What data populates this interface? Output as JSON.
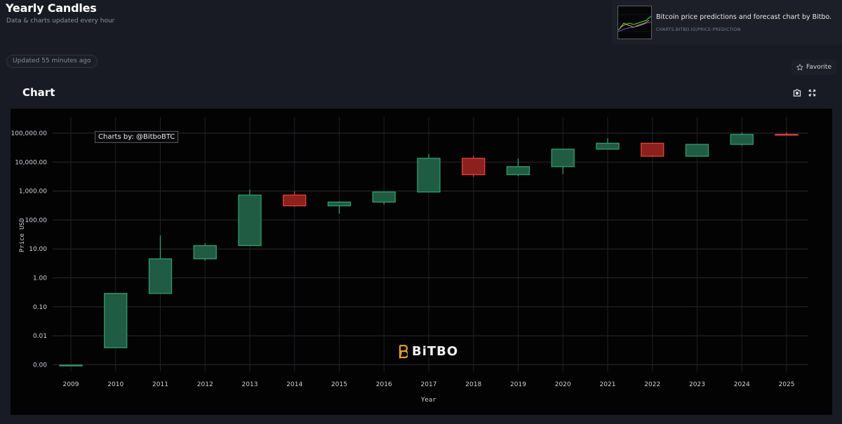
{
  "header": {
    "title": "Yearly Candles",
    "subtitle": "Data & charts updated every hour",
    "updated": "Updated 55 minutes ago"
  },
  "promo": {
    "title": "Bitcoin price predictions and forecast chart by Bitbo.",
    "url": "CHARTS.BITBO.IO/PRICE-PREDICTION"
  },
  "favorite": {
    "label": "Favorite",
    "icon": "star-outline-icon"
  },
  "chart_panel": {
    "heading": "Chart",
    "tools": [
      {
        "name": "camera-icon"
      },
      {
        "name": "fullscreen-icon"
      }
    ],
    "watermark": "Charts by: @BitboBTC",
    "brand": "BiTBO",
    "colors": {
      "up": "#2f9e6e",
      "up_fill": "#1f5c43",
      "down": "#e5423b",
      "down_fill": "#8c201d",
      "grid": "#2a2b2f"
    }
  },
  "chart_data": {
    "type": "candlestick",
    "title": "Yearly Candles",
    "xlabel": "Year",
    "ylabel": "Price USD",
    "yscale": "log",
    "ylim": [
      0.001,
      100000
    ],
    "yticks": [
      "100,000.00",
      "10,000.00",
      "1,000.00",
      "100.00",
      "10.00",
      "1.00",
      "0.10",
      "0.01",
      "0.00"
    ],
    "grid": true,
    "categories": [
      "2009",
      "2010",
      "2011",
      "2012",
      "2013",
      "2014",
      "2015",
      "2016",
      "2017",
      "2018",
      "2019",
      "2020",
      "2021",
      "2022",
      "2023",
      "2024",
      "2025"
    ],
    "candles": [
      {
        "year": "2009",
        "open": 0.001,
        "high": 0.001,
        "low": 0.001,
        "close": 0.001
      },
      {
        "year": "2010",
        "open": 0.004,
        "high": 0.3,
        "low": 0.004,
        "close": 0.3
      },
      {
        "year": "2011",
        "open": 0.3,
        "high": 30,
        "low": 0.3,
        "close": 4.7
      },
      {
        "year": "2012",
        "open": 4.7,
        "high": 16,
        "low": 4,
        "close": 13.5
      },
      {
        "year": "2013",
        "open": 13.5,
        "high": 1150,
        "low": 13.5,
        "close": 750
      },
      {
        "year": "2014",
        "open": 750,
        "high": 1000,
        "low": 300,
        "close": 320
      },
      {
        "year": "2015",
        "open": 320,
        "high": 460,
        "low": 170,
        "close": 430
      },
      {
        "year": "2016",
        "open": 430,
        "high": 980,
        "low": 360,
        "close": 960
      },
      {
        "year": "2017",
        "open": 960,
        "high": 19700,
        "low": 960,
        "close": 14000
      },
      {
        "year": "2018",
        "open": 14000,
        "high": 17000,
        "low": 3200,
        "close": 3800
      },
      {
        "year": "2019",
        "open": 3800,
        "high": 13800,
        "low": 3400,
        "close": 7200
      },
      {
        "year": "2020",
        "open": 7200,
        "high": 29000,
        "low": 4000,
        "close": 29000
      },
      {
        "year": "2021",
        "open": 29000,
        "high": 69000,
        "low": 29000,
        "close": 46300
      },
      {
        "year": "2022",
        "open": 46300,
        "high": 48000,
        "low": 15500,
        "close": 16500
      },
      {
        "year": "2023",
        "open": 16500,
        "high": 44000,
        "low": 16500,
        "close": 42300
      },
      {
        "year": "2024",
        "open": 42300,
        "high": 108000,
        "low": 38500,
        "close": 93400
      },
      {
        "year": "2025",
        "open": 93400,
        "high": 109000,
        "low": 89000,
        "close": 92000
      }
    ]
  }
}
